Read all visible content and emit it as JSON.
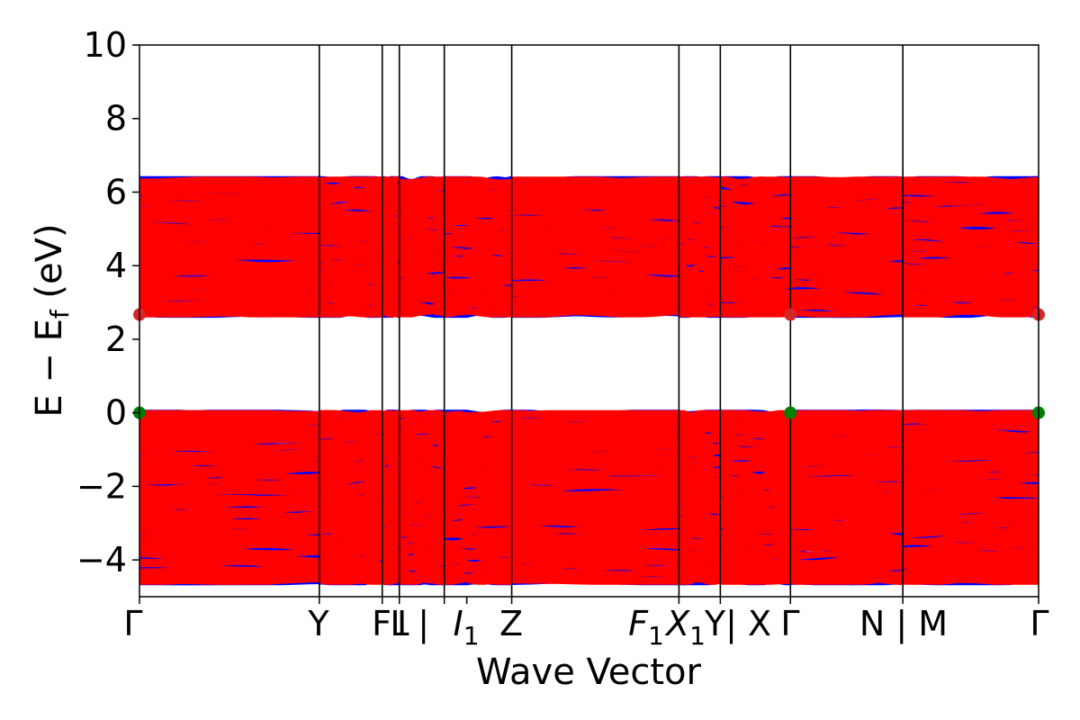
{
  "chart_data": {
    "type": "line",
    "title": "",
    "xlabel": "Wave Vector",
    "ylabel": "E − E",
    "ylabel_subscript": "f",
    "ylabel_unit": "(eV)",
    "ylim": [
      -5,
      10
    ],
    "yticks": [
      -4,
      -2,
      0,
      2,
      4,
      6,
      8,
      10
    ],
    "ytick_labels": [
      "−4",
      "−2",
      "0",
      "2",
      "4",
      "6",
      "8",
      "10"
    ],
    "x_range": [
      0,
      1
    ],
    "kpoint_labels": [
      {
        "x": 0.0,
        "label": "Γ",
        "italic": false
      },
      {
        "x": 0.2,
        "label": "Y",
        "italic": false
      },
      {
        "x": 0.27,
        "label": "F",
        "italic": false
      },
      {
        "x": 0.289,
        "label": "L",
        "italic": false
      },
      {
        "x": 0.339,
        "label": "I | ",
        "italic": false
      },
      {
        "x": 0.364,
        "label": "I",
        "italic": true,
        "sub": "1"
      },
      {
        "x": 0.414,
        "label": "Z",
        "italic": false
      },
      {
        "x": 0.6,
        "label": "F",
        "italic": true,
        "sub": "1"
      },
      {
        "x": 0.6,
        "label": "X",
        "italic": true,
        "sub": "1"
      },
      {
        "x": 0.646,
        "label": "Y| X",
        "italic": false
      },
      {
        "x": 0.724,
        "label": "Γ",
        "italic": false
      },
      {
        "x": 0.849,
        "label": "N | M",
        "italic": false
      },
      {
        "x": 1.0,
        "label": "Γ",
        "italic": false
      }
    ],
    "kpoint_lines": [
      0.2,
      0.27,
      0.289,
      0.339,
      0.414,
      0.6,
      0.646,
      0.724,
      0.849
    ],
    "band_gap": {
      "valence_band_maximum_eV": 0.0,
      "conduction_band_minimum_eV": 2.67,
      "vbm_k": [
        0.0,
        0.724,
        1.0
      ],
      "cbm_k": [
        0.0,
        0.724,
        1.0
      ]
    },
    "valence_band_range_eV": [
      -4.6,
      0.0
    ],
    "conduction_band_range_eV": [
      2.67,
      6.35
    ],
    "series": [
      {
        "name": "",
        "color": "#ff0000"
      },
      {
        "name": "",
        "color": "#0000ff"
      }
    ],
    "marker_colors": {
      "vbm": "#008000",
      "cbm": "#d62728"
    },
    "grid": false,
    "legend": "none"
  }
}
